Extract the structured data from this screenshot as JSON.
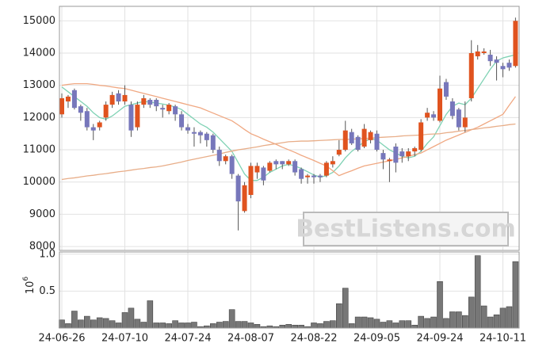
{
  "chart_data": [
    {
      "type": "candlestick",
      "open": [
        12100,
        12500,
        12850,
        12350,
        12200,
        11700,
        11700,
        12000,
        12400,
        12750,
        12500,
        12400,
        11700,
        12400,
        12550,
        12550,
        12300,
        12200,
        12350,
        12100,
        11700,
        11550,
        11550,
        11500,
        11450,
        11000,
        10650,
        10800,
        10200,
        9100,
        9600,
        10300,
        10450,
        10350,
        10650,
        10650,
        10550,
        10650,
        10400,
        10150,
        10200,
        10200,
        10200,
        10550,
        10850,
        11000,
        11550,
        11400,
        11100,
        11300,
        11500,
        10900,
        10650,
        11100,
        10950,
        10800,
        10950,
        11000,
        12000,
        12100,
        11900,
        13100,
        12500,
        12250,
        11700,
        12600,
        13900,
        14000,
        13950,
        13800,
        13600,
        13700,
        13600
      ],
      "high": [
        12750,
        12700,
        12900,
        12400,
        12300,
        11800,
        11900,
        12500,
        12800,
        12850,
        13000,
        12500,
        12500,
        12700,
        12600,
        12600,
        12400,
        12450,
        12400,
        12200,
        11800,
        11700,
        11600,
        11550,
        11500,
        11100,
        10850,
        10850,
        10250,
        10000,
        10600,
        10600,
        10500,
        10650,
        10700,
        10650,
        10700,
        10700,
        10450,
        10250,
        10250,
        10250,
        10650,
        10800,
        11300,
        11900,
        11650,
        11450,
        11800,
        11600,
        11600,
        11000,
        10750,
        11200,
        11050,
        11050,
        11100,
        11950,
        12300,
        12200,
        13300,
        13200,
        12600,
        12300,
        12500,
        14400,
        14250,
        14150,
        14100,
        13900,
        13700,
        13800,
        15100
      ],
      "low": [
        12000,
        12300,
        12250,
        11900,
        11600,
        11300,
        11600,
        11900,
        12300,
        12400,
        12400,
        11400,
        11600,
        12300,
        12300,
        12200,
        12000,
        12100,
        11900,
        11600,
        11500,
        11100,
        11200,
        11100,
        10900,
        10500,
        10550,
        10100,
        8500,
        9050,
        9500,
        10100,
        9900,
        10300,
        10400,
        10400,
        10500,
        10200,
        9950,
        9950,
        9950,
        10000,
        10150,
        10450,
        10800,
        10950,
        11150,
        10950,
        11050,
        11200,
        10950,
        10400,
        10000,
        10300,
        10600,
        10650,
        10800,
        10950,
        11900,
        11900,
        11850,
        12550,
        11950,
        11600,
        11550,
        12500,
        13800,
        13950,
        13600,
        13150,
        13250,
        13450,
        13550
      ],
      "close": [
        12600,
        12650,
        12300,
        12150,
        11700,
        11600,
        11850,
        12400,
        12700,
        12500,
        12700,
        11600,
        12400,
        12600,
        12400,
        12350,
        12250,
        12400,
        12100,
        11700,
        11600,
        11500,
        11450,
        11300,
        11000,
        10650,
        10800,
        10250,
        9400,
        9900,
        10500,
        10500,
        10050,
        10600,
        10550,
        10550,
        10650,
        10300,
        10100,
        10200,
        10150,
        10150,
        10600,
        10650,
        11000,
        11600,
        11200,
        11000,
        11650,
        11550,
        11000,
        10700,
        10700,
        10600,
        10800,
        10950,
        11050,
        11850,
        12150,
        12000,
        12900,
        12650,
        12050,
        11700,
        12000,
        14000,
        14050,
        14050,
        13750,
        13700,
        13500,
        13550,
        15000
      ],
      "up_color": "#e0531f",
      "down_color": "#7777bb",
      "wick_color": "#555555",
      "lines": [
        {
          "color": "#7fd2b4",
          "values": [
            12950,
            12800,
            12650,
            12500,
            12350,
            12150,
            12000,
            11950,
            12050,
            12200,
            12350,
            12400,
            12450,
            12500,
            12480,
            12450,
            12420,
            12380,
            12330,
            12250,
            12100,
            11950,
            11800,
            11700,
            11550,
            11350,
            11150,
            10950,
            10600,
            10250,
            10050,
            10050,
            10150,
            10300,
            10400,
            10500,
            10550,
            10500,
            10420,
            10320,
            10220,
            10150,
            10200,
            10300,
            10500,
            10750,
            10950,
            11100,
            11250,
            11350,
            11300,
            11150,
            11000,
            10900,
            10800,
            10750,
            10800,
            10950,
            11200,
            11400,
            11750,
            12100,
            12350,
            12450,
            12400,
            12600,
            12900,
            13200,
            13500,
            13750,
            13850,
            13900,
            13950
          ]
        },
        {
          "color": "#f0a882",
          "values": [
            13000,
            13030,
            13050,
            13050,
            13050,
            13030,
            13000,
            12980,
            12950,
            12920,
            12900,
            12850,
            12800,
            12750,
            12700,
            12650,
            12600,
            12550,
            12500,
            12450,
            12400,
            12350,
            12300,
            12220,
            12140,
            12060,
            11980,
            11900,
            11770,
            11630,
            11500,
            11420,
            11330,
            11250,
            11170,
            11080,
            11000,
            10920,
            10830,
            10750,
            10670,
            10580,
            10500,
            10350,
            10200,
            10280,
            10350,
            10430,
            10500,
            10540,
            10580,
            10620,
            10660,
            10700,
            10750,
            10800,
            10850,
            10900,
            11000,
            11100,
            11200,
            11300,
            11380,
            11460,
            11540,
            11620,
            11700,
            11800,
            11900,
            12000,
            12100,
            12380,
            12650
          ]
        },
        {
          "color": "#e8ad88",
          "values": [
            10080,
            10110,
            10130,
            10160,
            10190,
            10210,
            10240,
            10260,
            10290,
            10320,
            10340,
            10370,
            10400,
            10420,
            10450,
            10470,
            10500,
            10540,
            10580,
            10620,
            10670,
            10710,
            10750,
            10790,
            10830,
            10870,
            10920,
            10960,
            11000,
            11030,
            11060,
            11090,
            11130,
            11160,
            11190,
            11220,
            11250,
            11260,
            11270,
            11270,
            11280,
            11290,
            11300,
            11310,
            11320,
            11320,
            11330,
            11340,
            11350,
            11360,
            11380,
            11390,
            11400,
            11410,
            11430,
            11440,
            11450,
            11460,
            11480,
            11490,
            11500,
            11530,
            11550,
            11580,
            11600,
            11630,
            11650,
            11680,
            11700,
            11730,
            11750,
            11780,
            11800
          ]
        }
      ],
      "ylim": [
        7880,
        15450
      ],
      "yticks": [
        8000,
        9000,
        10000,
        11000,
        12000,
        13000,
        14000,
        15000
      ],
      "grid": true,
      "watermark": "BestListens.com"
    },
    {
      "type": "bar",
      "categories": [
        "24-06-26",
        null,
        null,
        null,
        null,
        null,
        null,
        null,
        null,
        null,
        "24-07-10",
        null,
        null,
        null,
        null,
        null,
        null,
        null,
        null,
        null,
        "24-07-24",
        null,
        null,
        null,
        null,
        null,
        null,
        null,
        null,
        null,
        "24-08-07",
        null,
        null,
        null,
        null,
        null,
        null,
        null,
        null,
        null,
        "24-08-22",
        null,
        null,
        null,
        null,
        null,
        null,
        null,
        null,
        null,
        "24-09-05",
        null,
        null,
        null,
        null,
        null,
        null,
        null,
        null,
        null,
        "24-09-24",
        null,
        null,
        null,
        null,
        null,
        null,
        null,
        null,
        null,
        "24-10-11",
        null,
        null
      ],
      "values": [
        0.11,
        0.06,
        0.23,
        0.11,
        0.16,
        0.11,
        0.14,
        0.13,
        0.1,
        0.07,
        0.21,
        0.27,
        0.12,
        0.08,
        0.37,
        0.07,
        0.07,
        0.06,
        0.1,
        0.07,
        0.07,
        0.08,
        0.02,
        0.03,
        0.06,
        0.08,
        0.09,
        0.25,
        0.09,
        0.09,
        0.07,
        0.05,
        0.02,
        0.03,
        0.02,
        0.04,
        0.05,
        0.04,
        0.04,
        0.02,
        0.07,
        0.06,
        0.09,
        0.1,
        0.33,
        0.54,
        0.06,
        0.15,
        0.15,
        0.14,
        0.12,
        0.08,
        0.1,
        0.07,
        0.1,
        0.1,
        0.04,
        0.16,
        0.13,
        0.15,
        0.63,
        0.13,
        0.22,
        0.22,
        0.17,
        0.42,
        0.98,
        0.3,
        0.15,
        0.18,
        0.27,
        0.29,
        0.9
      ],
      "color": "#777777",
      "edge_color": "#444444",
      "ylim": [
        0,
        1.03
      ],
      "yticks": [
        0.5,
        {
          "value": 1,
          "label": "1.0"
        }
      ],
      "grid": true,
      "offset_base": "10",
      "offset_exponent": "6"
    }
  ]
}
